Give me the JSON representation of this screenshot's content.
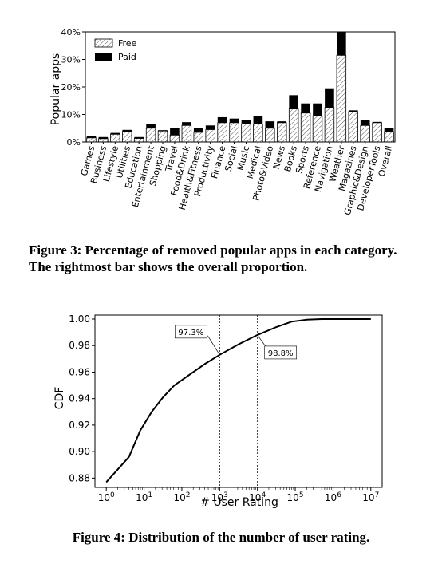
{
  "figure3": {
    "caption": "Figure 3: Percentage of removed popular apps in each category. The rightmost bar shows the overall proportion.",
    "chart_data": {
      "type": "bar",
      "stacked": true,
      "title": "",
      "xlabel": "",
      "ylabel": "Popular apps",
      "ylim": [
        0,
        40
      ],
      "yticks": [
        "0%",
        "10%",
        "20%",
        "30%",
        "40%"
      ],
      "legend": {
        "position": "top-left",
        "entries": [
          "Free",
          "Paid"
        ]
      },
      "categories": [
        "Games",
        "Business",
        "Lifestyle",
        "Utilities",
        "Education",
        "Entertainment",
        "Shopping",
        "Travel",
        "Food&Drink",
        "Health&Fitness",
        "Productivity",
        "Finance",
        "Social",
        "Music",
        "Medical",
        "Photo&Video",
        "News",
        "Books",
        "Sports",
        "Reference",
        "Navigation",
        "Weather",
        "Magazines",
        "Graphic&Design",
        "DeveloperTools",
        "Overall"
      ],
      "series": [
        {
          "name": "Free",
          "values": [
            1.5,
            1.2,
            2.8,
            3.8,
            1.3,
            5.0,
            4.0,
            2.5,
            6.0,
            3.5,
            4.5,
            7.0,
            7.0,
            6.5,
            6.5,
            5.0,
            7.0,
            12.0,
            10.5,
            9.5,
            12.5,
            31.5,
            11.0,
            6.0,
            7.0,
            3.8
          ]
        },
        {
          "name": "Paid",
          "values": [
            0.8,
            0.6,
            0.5,
            0.6,
            0.5,
            1.5,
            0.3,
            2.5,
            1.2,
            1.5,
            1.5,
            2.0,
            1.5,
            1.5,
            3.0,
            2.5,
            0.5,
            5.0,
            3.5,
            4.5,
            7.0,
            9.0,
            0.5,
            2.0,
            0.3,
            1.2
          ]
        }
      ]
    }
  },
  "figure4": {
    "caption": "Figure 4: Distribution of the number of user rating.",
    "chart_data": {
      "type": "line",
      "title": "",
      "xlabel": "# User Rating",
      "ylabel": "CDF",
      "xscale": "log",
      "xlim_exp": [
        -0.3,
        7.3
      ],
      "ylim": [
        0.873,
        1.003
      ],
      "xtick_exponents": [
        0,
        1,
        2,
        3,
        4,
        5,
        6,
        7
      ],
      "yticks": [
        "0.88",
        "0.90",
        "0.92",
        "0.94",
        "0.96",
        "0.98",
        "1.00"
      ],
      "ytick_values": [
        0.88,
        0.9,
        0.92,
        0.94,
        0.96,
        0.98,
        1.0
      ],
      "series": [
        {
          "name": "CDF",
          "x_exp": [
            0,
            0.6,
            0.9,
            1.2,
            1.5,
            1.8,
            2.2,
            2.6,
            3.0,
            3.5,
            4.0,
            4.5,
            4.9,
            5.3,
            5.7,
            6.2,
            7.0
          ],
          "y": [
            0.877,
            0.896,
            0.916,
            0.93,
            0.941,
            0.95,
            0.958,
            0.966,
            0.973,
            0.981,
            0.988,
            0.994,
            0.998,
            0.9995,
            1.0,
            1.0,
            1.0
          ]
        }
      ],
      "vlines_exp": [
        3,
        4
      ],
      "annotations": [
        {
          "text": "97.3%",
          "x_exp": 3,
          "y": 0.973
        },
        {
          "text": "98.8%",
          "x_exp": 4,
          "y": 0.988
        }
      ]
    }
  }
}
